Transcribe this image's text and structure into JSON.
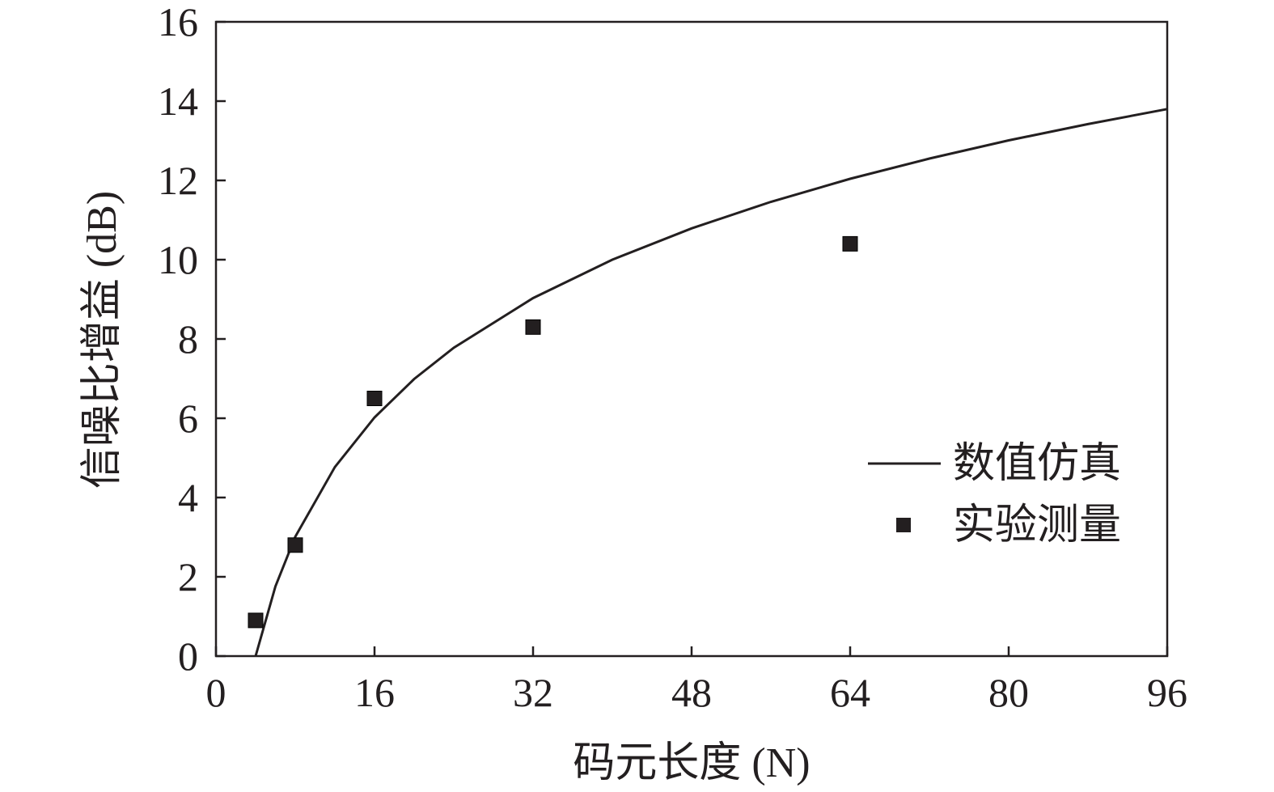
{
  "chart_data": {
    "type": "line",
    "title": "",
    "xlabel": "码元长度 (N)",
    "ylabel": "信噪比增益 (dB)",
    "xlim": [
      0,
      96
    ],
    "ylim": [
      0,
      16
    ],
    "xticks": [
      0,
      16,
      32,
      48,
      64,
      80,
      96
    ],
    "yticks": [
      0,
      2,
      4,
      6,
      8,
      10,
      12,
      14,
      16
    ],
    "grid": false,
    "legend_position": "right",
    "series": [
      {
        "name": "数值仿真",
        "type": "line",
        "color": "#231f20",
        "x": [
          4,
          6,
          8,
          12,
          16,
          20,
          24,
          32,
          40,
          48,
          56,
          64,
          72,
          80,
          88,
          96
        ],
        "y": [
          0,
          1.76,
          3.01,
          4.77,
          6.02,
          6.99,
          7.78,
          9.03,
          10.0,
          10.79,
          11.46,
          12.04,
          12.55,
          13.01,
          13.42,
          13.8
        ]
      },
      {
        "name": "实验测量",
        "type": "scatter",
        "marker": "square",
        "color": "#231f20",
        "x": [
          4,
          8,
          16,
          32,
          64
        ],
        "y": [
          0.9,
          2.8,
          6.5,
          8.3,
          10.4
        ]
      }
    ]
  }
}
